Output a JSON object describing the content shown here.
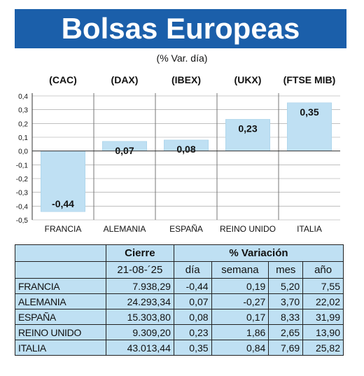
{
  "header": {
    "title": "Bolsas Europeas",
    "subtitle": "(% Var. día)"
  },
  "chart_data": {
    "type": "bar",
    "categories": [
      "FRANCIA",
      "ALEMANIA",
      "ESPAÑA",
      "REINO UNIDO",
      "ITALIA"
    ],
    "index_labels": [
      "(CAC)",
      "(DAX)",
      "(IBEX)",
      "(UKX)",
      "(FTSE MIB)"
    ],
    "values": [
      -0.44,
      0.07,
      0.08,
      0.23,
      0.35
    ],
    "value_labels": [
      "-0,44",
      "0,07",
      "0,08",
      "0,23",
      "0,35"
    ],
    "ylim": [
      -0.5,
      0.4
    ],
    "yticks": [
      0.4,
      0.3,
      0.2,
      0.1,
      0.0,
      -0.1,
      -0.2,
      -0.3,
      -0.4,
      -0.5
    ],
    "ytick_labels": [
      "0,4",
      "0,3",
      "0,2",
      "0,1",
      "0,0",
      "-0,1",
      "-0,2",
      "-0,3",
      "-0,4",
      "-0,5"
    ],
    "bar_color": "#bfe0f3",
    "grid": true
  },
  "table": {
    "group_headers": [
      "Cierre",
      "% Variación"
    ],
    "sub_headers": [
      "21-08-´25",
      "día",
      "semana",
      "mes",
      "año"
    ],
    "rows": [
      {
        "name": "FRANCIA",
        "cierre": "7.938,29",
        "dia": "-0,44",
        "semana": "0,19",
        "mes": "5,20",
        "ano": "7,55"
      },
      {
        "name": "ALEMANIA",
        "cierre": "24.293,34",
        "dia": "0,07",
        "semana": "-0,27",
        "mes": "3,70",
        "ano": "22,02"
      },
      {
        "name": "ESPAÑA",
        "cierre": "15.303,80",
        "dia": "0,08",
        "semana": "0,17",
        "mes": "8,33",
        "ano": "31,99"
      },
      {
        "name": "REINO UNIDO",
        "cierre": "9.309,20",
        "dia": "0,23",
        "semana": "1,86",
        "mes": "2,65",
        "ano": "13,90"
      },
      {
        "name": "ITALIA",
        "cierre": "43.013,44",
        "dia": "0,35",
        "semana": "0,84",
        "mes": "7,69",
        "ano": "25,82"
      }
    ]
  }
}
